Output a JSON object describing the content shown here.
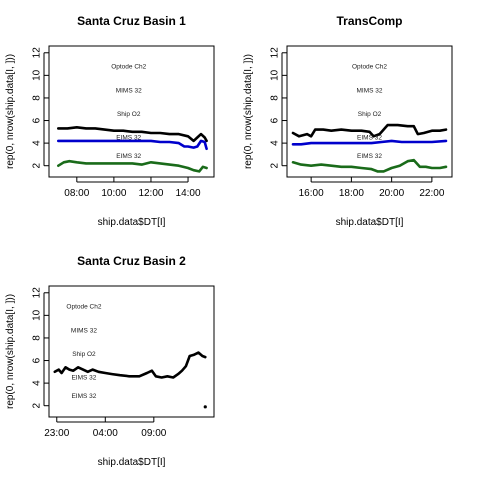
{
  "chart_data": [
    {
      "type": "line",
      "title": "Santa Cruz Basin 1",
      "xlabel": "ship.data$DT[I]",
      "ylabel": "rep(0, nrow(ship.data[I, ]))",
      "xlim": [
        6.5,
        15.4
      ],
      "ylim": [
        1,
        12.6
      ],
      "xticks": [
        {
          "v": 8,
          "label": "08:00"
        },
        {
          "v": 10,
          "label": "10:00"
        },
        {
          "v": 12,
          "label": "12:00"
        },
        {
          "v": 14,
          "label": "14:00"
        }
      ],
      "yticks": [
        2,
        4,
        6,
        8,
        10,
        12
      ],
      "annotations": [
        {
          "text": "Optode Ch2",
          "x": 10.8,
          "y": 10.8
        },
        {
          "text": "MIMS 32",
          "x": 10.8,
          "y": 8.7
        },
        {
          "text": "Ship O2",
          "x": 10.8,
          "y": 6.6
        },
        {
          "text": "EIMS 32",
          "x": 10.8,
          "y": 4.5
        },
        {
          "text": "EIMS 32",
          "x": 10.8,
          "y": 2.9
        }
      ],
      "series": [
        {
          "color": "#000000",
          "x": [
            7,
            7.5,
            8,
            8.5,
            9,
            9.5,
            10,
            10.5,
            11,
            11.5,
            12,
            12.5,
            13,
            13.5,
            14,
            14.3,
            14.5,
            14.7,
            14.9,
            15.0
          ],
          "y": [
            5.3,
            5.3,
            5.4,
            5.3,
            5.3,
            5.2,
            5.1,
            5.1,
            5.0,
            5.0,
            4.9,
            4.9,
            4.8,
            4.8,
            4.6,
            4.2,
            4.5,
            4.8,
            4.5,
            4.2
          ]
        },
        {
          "color": "#0000cc",
          "x": [
            7,
            7.5,
            8,
            8.5,
            9,
            9.5,
            10,
            10.5,
            11,
            11.5,
            12,
            12.5,
            13,
            13.5,
            13.8,
            14.0,
            14.3,
            14.5,
            14.7,
            14.9,
            15.0
          ],
          "y": [
            4.2,
            4.2,
            4.2,
            4.2,
            4.2,
            4.2,
            4.2,
            4.2,
            4.2,
            4.2,
            4.2,
            4.1,
            4.1,
            4.0,
            3.7,
            3.7,
            3.6,
            3.7,
            4.2,
            4.1,
            3.5
          ]
        },
        {
          "color": "#1a6b1a",
          "x": [
            7,
            7.3,
            7.6,
            8,
            8.5,
            9,
            9.5,
            10,
            10.5,
            11,
            11.5,
            12,
            12.5,
            13,
            13.5,
            14,
            14.3,
            14.6,
            14.8,
            15.0
          ],
          "y": [
            2.0,
            2.3,
            2.4,
            2.3,
            2.2,
            2.2,
            2.2,
            2.2,
            2.2,
            2.2,
            2.1,
            2.3,
            2.2,
            2.1,
            2.0,
            1.8,
            1.6,
            1.5,
            1.9,
            1.8
          ]
        }
      ]
    },
    {
      "type": "line",
      "title": "TransComp",
      "xlabel": "ship.data$DT[I]",
      "ylabel": "rep(0, nrow(ship.data[I, ]))",
      "xlim": [
        14.8,
        23.0
      ],
      "ylim": [
        1,
        12.6
      ],
      "xticks": [
        {
          "v": 16,
          "label": "16:00"
        },
        {
          "v": 18,
          "label": "18:00"
        },
        {
          "v": 20,
          "label": "20:00"
        },
        {
          "v": 22,
          "label": "22:00"
        }
      ],
      "yticks": [
        2,
        4,
        6,
        8,
        10,
        12
      ],
      "annotations": [
        {
          "text": "Optode Ch2",
          "x": 18.9,
          "y": 10.8
        },
        {
          "text": "MIMS 32",
          "x": 18.9,
          "y": 8.7
        },
        {
          "text": "Ship O2",
          "x": 18.9,
          "y": 6.6
        },
        {
          "text": "EIMS 32",
          "x": 18.9,
          "y": 4.5
        },
        {
          "text": "EIMS 32",
          "x": 18.9,
          "y": 2.9
        }
      ],
      "series": [
        {
          "color": "#000000",
          "x": [
            15.1,
            15.4,
            15.8,
            16.0,
            16.2,
            16.6,
            17,
            17.5,
            18,
            18.5,
            18.9,
            19.1,
            19.4,
            19.6,
            19.8,
            20.3,
            20.8,
            21.1,
            21.3,
            21.6,
            22,
            22.4,
            22.7
          ],
          "y": [
            4.9,
            4.6,
            4.8,
            4.6,
            5.2,
            5.2,
            5.1,
            5.2,
            5.1,
            5.1,
            5.0,
            4.6,
            4.8,
            5.2,
            5.6,
            5.6,
            5.5,
            5.5,
            4.8,
            4.9,
            5.1,
            5.1,
            5.2
          ]
        },
        {
          "color": "#0000cc",
          "x": [
            15.1,
            15.5,
            16,
            16.5,
            17,
            17.5,
            18,
            18.5,
            19,
            19.5,
            20,
            20.5,
            21,
            21.5,
            22,
            22.7
          ],
          "y": [
            3.9,
            3.9,
            4.0,
            4.0,
            4.0,
            4.0,
            4.0,
            4.0,
            4.0,
            4.1,
            4.2,
            4.1,
            4.1,
            4.1,
            4.1,
            4.2
          ]
        },
        {
          "color": "#1a6b1a",
          "x": [
            15.1,
            15.5,
            16,
            16.5,
            17,
            17.5,
            18,
            18.5,
            19,
            19.3,
            19.6,
            20,
            20.4,
            20.8,
            21.1,
            21.4,
            21.7,
            22,
            22.4,
            22.7
          ],
          "y": [
            2.3,
            2.1,
            2.0,
            2.1,
            2.0,
            1.9,
            1.9,
            1.8,
            1.7,
            1.5,
            1.5,
            1.8,
            2.0,
            2.4,
            2.5,
            1.9,
            1.9,
            1.8,
            1.8,
            1.9
          ]
        }
      ]
    },
    {
      "type": "line",
      "title": "Santa Cruz Basin 2",
      "xlabel": "ship.data$DT[I]",
      "ylabel": "rep(0, nrow(ship.data[I, ]))",
      "xlim": [
        -1.8,
        15.2
      ],
      "ylim": [
        1,
        12.6
      ],
      "xticks": [
        {
          "v": -1,
          "label": "23:00"
        },
        {
          "v": 4,
          "label": "04:00"
        },
        {
          "v": 9,
          "label": "09:00"
        }
      ],
      "yticks": [
        2,
        4,
        6,
        8,
        10,
        12
      ],
      "annotations": [
        {
          "text": "Optode Ch2",
          "x": 1.8,
          "y": 10.8
        },
        {
          "text": "MIMS 32",
          "x": 1.8,
          "y": 8.7
        },
        {
          "text": "Ship O2",
          "x": 1.8,
          "y": 6.6
        },
        {
          "text": "EIMS 32",
          "x": 1.8,
          "y": 4.5
        },
        {
          "text": "EIMS 32",
          "x": 1.8,
          "y": 2.9
        }
      ],
      "series": [
        {
          "color": "#000000",
          "x": [
            -1.2,
            -0.8,
            -0.5,
            -0.1,
            0.3,
            0.7,
            1.2,
            1.7,
            2.2,
            2.7,
            3.3,
            4,
            4.7,
            5.5,
            6.5,
            7.5,
            8.3,
            8.8,
            9.2,
            9.8,
            10.4,
            11.0,
            11.5,
            11.9,
            12.3,
            12.7,
            13.1,
            13.6,
            14.0,
            14.3
          ],
          "y": [
            5.0,
            5.2,
            4.9,
            5.4,
            5.2,
            5.1,
            5.4,
            5.2,
            5.0,
            5.2,
            5.0,
            4.9,
            4.8,
            4.7,
            4.6,
            4.6,
            4.9,
            5.1,
            4.6,
            4.5,
            4.6,
            4.5,
            4.8,
            5.1,
            5.5,
            6.4,
            6.5,
            6.7,
            6.4,
            6.3
          ]
        }
      ],
      "points": [
        {
          "x": 14.3,
          "y": 1.9,
          "color": "#000000"
        }
      ]
    }
  ]
}
